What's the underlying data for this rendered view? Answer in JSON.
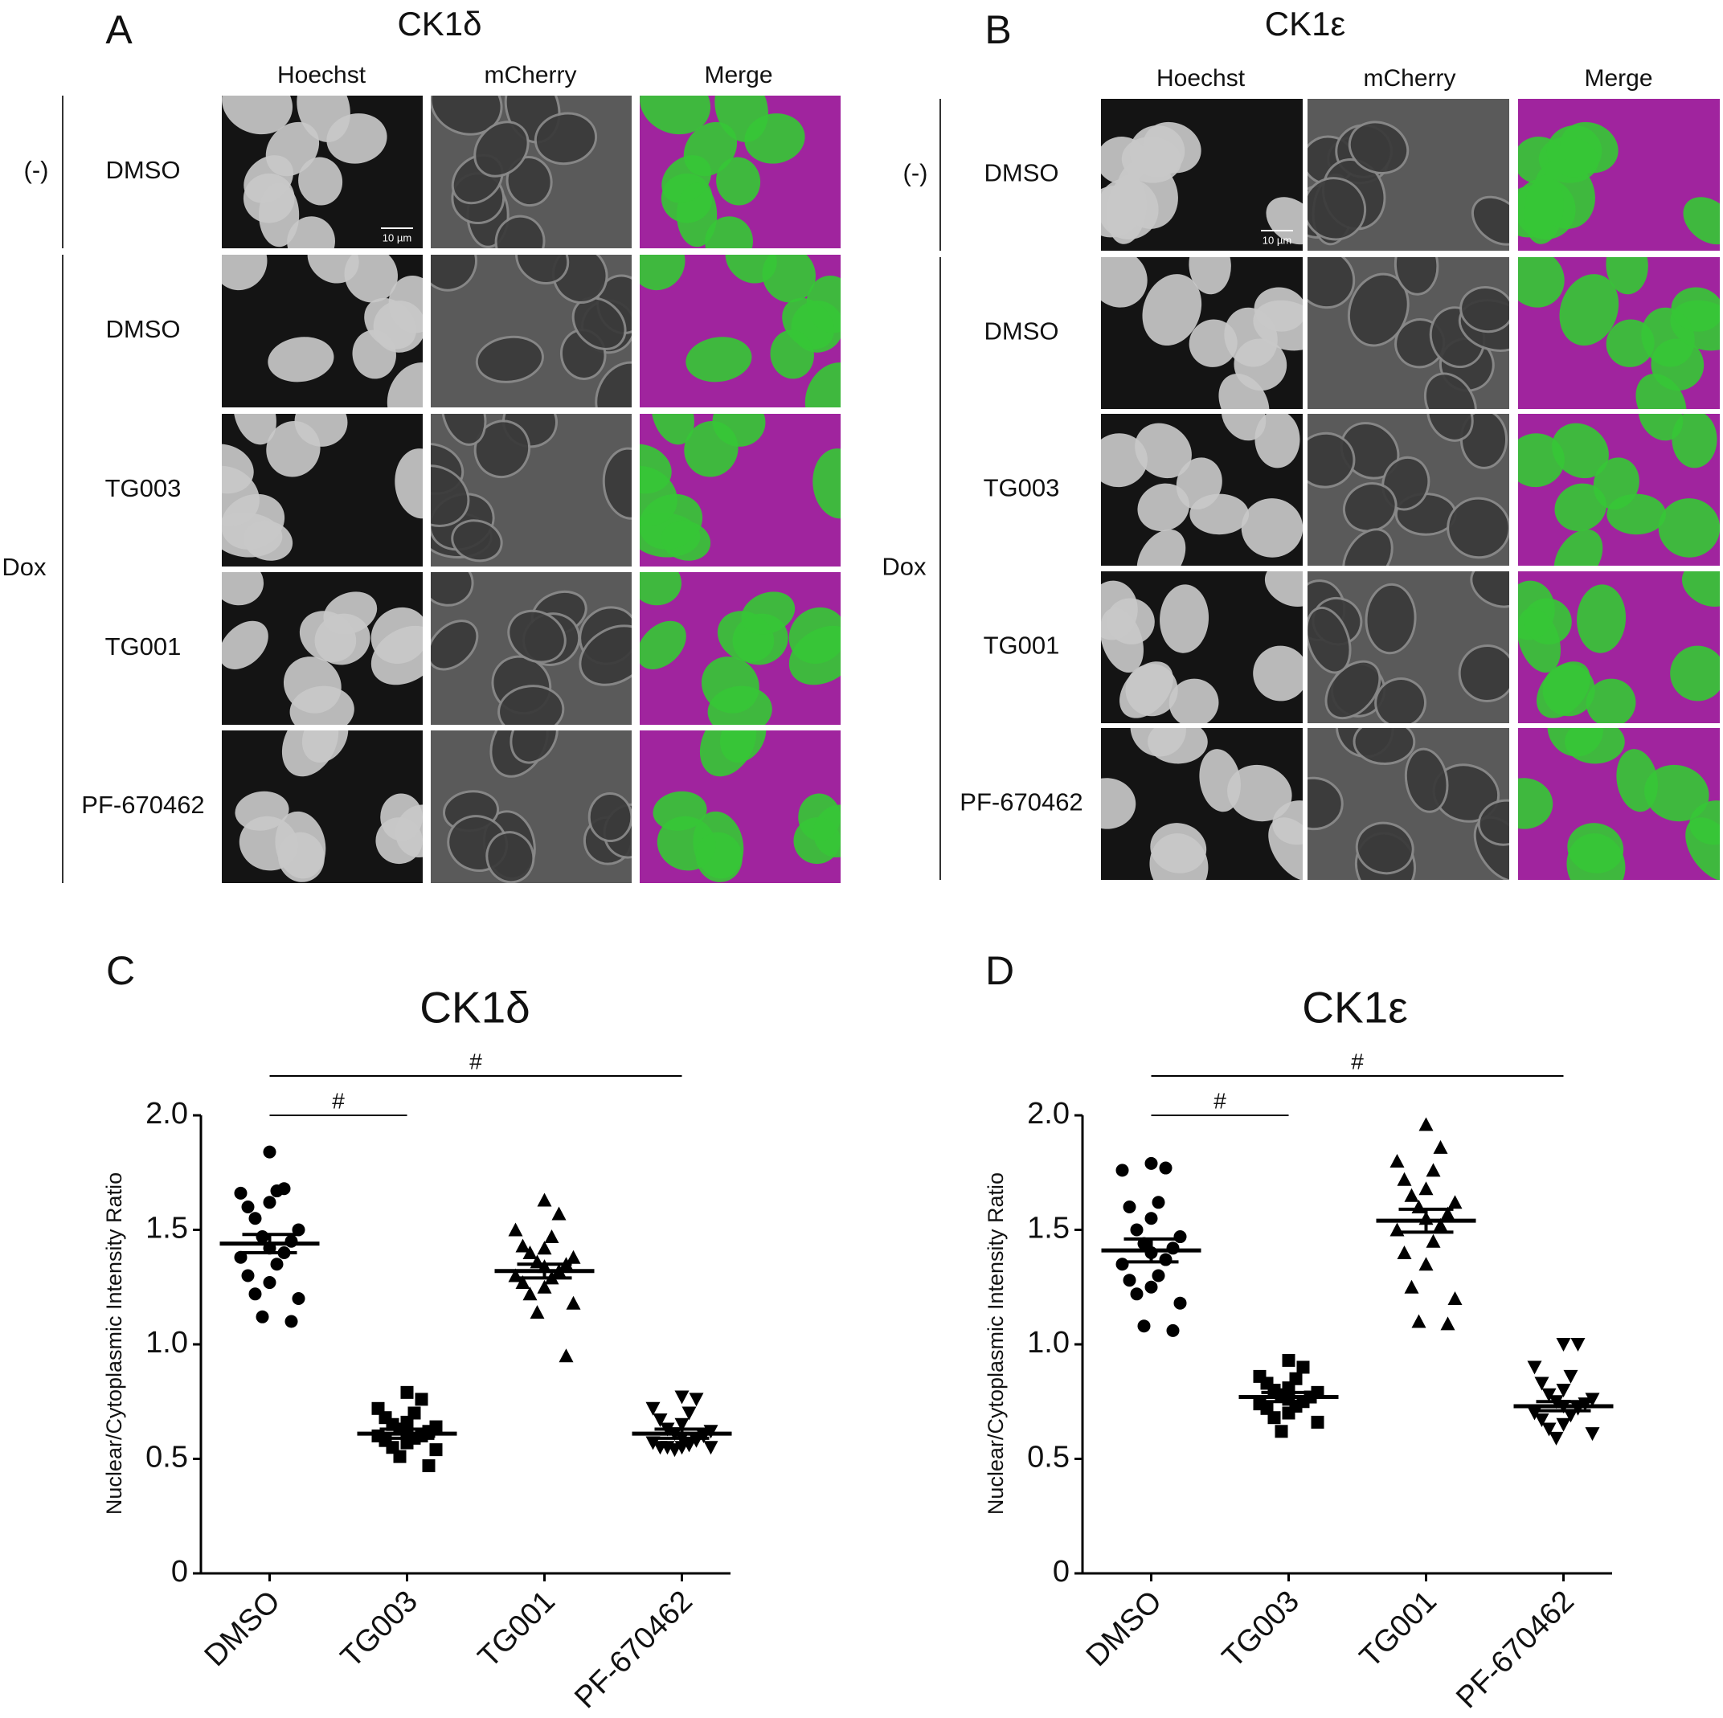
{
  "panels": [
    {
      "letter": "A",
      "title": "CK1δ",
      "columns": [
        "Hoechst",
        "mCherry",
        "Merge"
      ],
      "groups": [
        "(-)",
        "Dox"
      ],
      "rows": [
        "DMSO",
        "DMSO",
        "TG003",
        "TG001",
        "PF-670462"
      ],
      "scale_bar": "10 µm"
    },
    {
      "letter": "B",
      "title": "CK1ε",
      "columns": [
        "Hoechst",
        "mCherry",
        "Merge"
      ],
      "groups": [
        "(-)",
        "Dox"
      ],
      "rows": [
        "DMSO",
        "DMSO",
        "TG003",
        "TG001",
        "PF-670462"
      ],
      "scale_bar": "10 µm"
    }
  ],
  "chart_data": [
    {
      "type": "dotplot",
      "letter": "C",
      "title": "CK1δ",
      "ylabel": "Nuclear/Cytoplasmic Intensity Ratio",
      "categories": [
        "DMSO",
        "TG003",
        "TG001",
        "PF-670462"
      ],
      "ylim": [
        0,
        2
      ],
      "yticks": [
        0,
        0.5,
        {
          "value": 1,
          "label": "1.0"
        },
        1.5,
        {
          "value": 2,
          "label": "2.0"
        }
      ],
      "color": "#000000",
      "annotations": [
        "#",
        "#"
      ],
      "groups": [
        {
          "marker": "circle",
          "mean": 1.44,
          "sem": 0.04,
          "values": [
            1.84,
            1.68,
            1.66,
            1.67,
            1.6,
            1.62,
            1.55,
            1.5,
            1.47,
            1.45,
            1.42,
            1.4,
            1.38,
            1.35,
            1.3,
            1.27,
            1.22,
            1.2,
            1.12,
            1.1
          ]
        },
        {
          "marker": "square",
          "mean": 0.61,
          "sem": 0.02,
          "values": [
            0.79,
            0.76,
            0.72,
            0.7,
            0.68,
            0.66,
            0.65,
            0.64,
            0.63,
            0.62,
            0.61,
            0.6,
            0.6,
            0.59,
            0.58,
            0.57,
            0.55,
            0.54,
            0.51,
            0.47
          ]
        },
        {
          "marker": "triangle-up",
          "mean": 1.32,
          "sem": 0.03,
          "values": [
            1.63,
            1.57,
            1.5,
            1.47,
            1.43,
            1.42,
            1.4,
            1.38,
            1.36,
            1.35,
            1.34,
            1.32,
            1.3,
            1.29,
            1.27,
            1.25,
            1.22,
            1.18,
            1.14,
            0.95
          ]
        },
        {
          "marker": "triangle-down",
          "mean": 0.61,
          "sem": 0.02,
          "values": [
            0.77,
            0.76,
            0.72,
            0.7,
            0.67,
            0.65,
            0.63,
            0.62,
            0.61,
            0.6,
            0.59,
            0.58,
            0.57,
            0.56,
            0.55,
            0.55,
            0.55,
            0.55,
            0.54
          ]
        }
      ]
    },
    {
      "type": "dotplot",
      "letter": "D",
      "title": "CK1ε",
      "ylabel": "Nuclear/Cytoplasmic Intensity Ratio",
      "categories": [
        "DMSO",
        "TG003",
        "TG001",
        "PF-670462"
      ],
      "ylim": [
        0,
        2
      ],
      "yticks": [
        0,
        0.5,
        {
          "value": 1,
          "label": "1.0"
        },
        1.5,
        {
          "value": 2,
          "label": "2.0"
        }
      ],
      "color": "#000000",
      "annotations": [
        "#",
        "#"
      ],
      "groups": [
        {
          "marker": "circle",
          "mean": 1.41,
          "sem": 0.05,
          "values": [
            1.79,
            1.77,
            1.76,
            1.62,
            1.6,
            1.55,
            1.5,
            1.47,
            1.44,
            1.42,
            1.4,
            1.37,
            1.35,
            1.3,
            1.28,
            1.25,
            1.22,
            1.18,
            1.08,
            1.06
          ]
        },
        {
          "marker": "square",
          "mean": 0.77,
          "sem": 0.02,
          "values": [
            0.93,
            0.9,
            0.86,
            0.85,
            0.83,
            0.81,
            0.8,
            0.79,
            0.78,
            0.77,
            0.76,
            0.75,
            0.74,
            0.73,
            0.72,
            0.7,
            0.68,
            0.66,
            0.62
          ]
        },
        {
          "marker": "triangle-up",
          "mean": 1.54,
          "sem": 0.05,
          "values": [
            1.96,
            1.86,
            1.8,
            1.76,
            1.72,
            1.68,
            1.65,
            1.62,
            1.6,
            1.57,
            1.55,
            1.52,
            1.5,
            1.45,
            1.4,
            1.35,
            1.25,
            1.2,
            1.1,
            1.09
          ]
        },
        {
          "marker": "triangle-down",
          "mean": 0.73,
          "sem": 0.02,
          "values": [
            1.0,
            1.0,
            0.9,
            0.86,
            0.83,
            0.8,
            0.78,
            0.76,
            0.75,
            0.74,
            0.73,
            0.72,
            0.7,
            0.69,
            0.67,
            0.65,
            0.63,
            0.61,
            0.59
          ]
        }
      ]
    }
  ]
}
